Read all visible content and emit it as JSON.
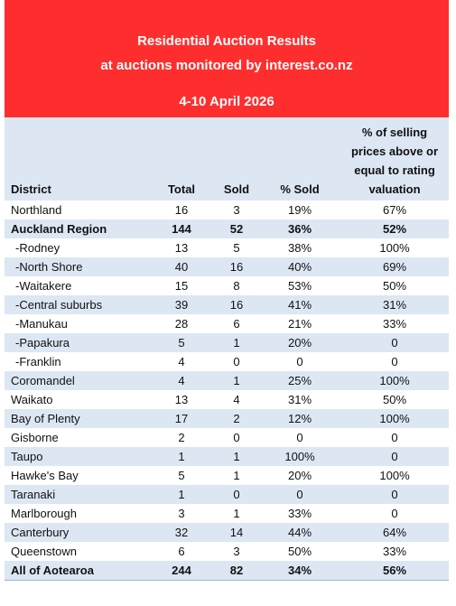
{
  "header": {
    "title": "Residential Auction Results",
    "subtitle": "at auctions monitored by interest.co.nz",
    "date": "4-10 April 2026"
  },
  "table": {
    "columns": [
      "District",
      "Total",
      "Sold",
      "% Sold",
      "% of selling prices above or equal to rating valuation"
    ],
    "rows": [
      [
        "Northland",
        16,
        3,
        "19%",
        "67%"
      ],
      [
        "Auckland Region",
        144,
        52,
        "36%",
        "52%"
      ],
      [
        "-Rodney",
        13,
        5,
        "38%",
        "100%"
      ],
      [
        "-North Shore",
        40,
        16,
        "40%",
        "69%"
      ],
      [
        "-Waitakere",
        15,
        8,
        "53%",
        "50%"
      ],
      [
        "-Central suburbs",
        39,
        16,
        "41%",
        "31%"
      ],
      [
        "-Manukau",
        28,
        6,
        "21%",
        "33%"
      ],
      [
        "-Papakura",
        5,
        1,
        "20%",
        "0"
      ],
      [
        "-Franklin",
        4,
        0,
        "0",
        "0"
      ],
      [
        "Coromandel",
        4,
        1,
        "25%",
        "100%"
      ],
      [
        "Waikato",
        13,
        4,
        "31%",
        "50%"
      ],
      [
        "Bay of Plenty",
        17,
        2,
        "12%",
        "100%"
      ],
      [
        "Gisborne",
        2,
        0,
        "0",
        "0"
      ],
      [
        "Taupo",
        1,
        1,
        "100%",
        "0"
      ],
      [
        "Hawke's Bay",
        5,
        1,
        "20%",
        "100%"
      ],
      [
        "Taranaki",
        1,
        0,
        "0",
        "0"
      ],
      [
        "Marlborough",
        3,
        1,
        "33%",
        "0"
      ],
      [
        "Canterbury",
        32,
        14,
        "44%",
        "64%"
      ],
      [
        "Queenstown",
        6,
        3,
        "50%",
        "33%"
      ],
      [
        "All of Aotearoa",
        244,
        82,
        "34%",
        "56%"
      ]
    ]
  }
}
